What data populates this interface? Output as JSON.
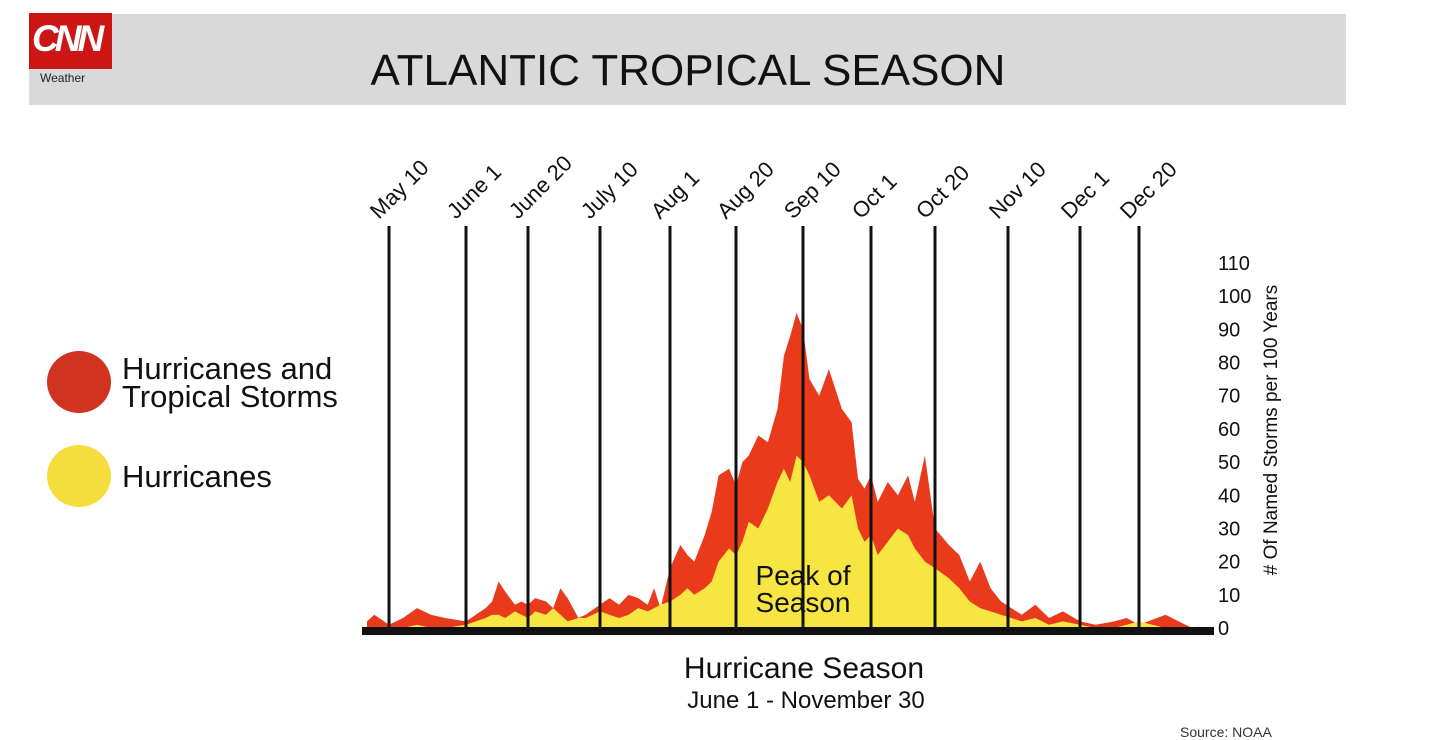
{
  "header": {
    "logo_text": "CNN",
    "logo_sub": "Weather",
    "title": "ATLANTIC TROPICAL SEASON"
  },
  "legend": [
    {
      "label_line1": "Hurricanes and",
      "label_line2": "Tropical Storms",
      "color": "#d03420"
    },
    {
      "label_line1": "Hurricanes",
      "label_line2": "",
      "color": "#f5dd3d"
    }
  ],
  "annotation": {
    "line1": "Peak of",
    "line2": "Season"
  },
  "footer": {
    "source": "Source: NOAA"
  },
  "colors": {
    "storms": "#e93a1c",
    "hurricanes": "#f7e542",
    "bar": "#111111"
  },
  "chart_data": {
    "type": "area",
    "title": "ATLANTIC TROPICAL SEASON",
    "xlabel": "Hurricane Season",
    "xlabel_sub": "June 1 - November 30",
    "ylabel": "# Of Named Storms per 100 Years",
    "ylim": [
      0,
      110
    ],
    "yticks": [
      0,
      10,
      20,
      30,
      40,
      50,
      60,
      70,
      80,
      90,
      100,
      110
    ],
    "date_ticks": [
      "May 10",
      "June 1",
      "June 20",
      "July 10",
      "Aug 1",
      "Aug 20",
      "Sep 10",
      "Oct 1",
      "Oct 20",
      "Nov 10",
      "Dec 1",
      "Dec 20"
    ],
    "legend": "left",
    "x": [
      "2024-05-01",
      "2024-05-04",
      "2024-05-10",
      "2024-05-14",
      "2024-05-18",
      "2024-05-22",
      "2024-05-26",
      "2024-06-01",
      "2024-06-04",
      "2024-06-07",
      "2024-06-09",
      "2024-06-11",
      "2024-06-13",
      "2024-06-16",
      "2024-06-18",
      "2024-06-20",
      "2024-06-22",
      "2024-06-25",
      "2024-06-27",
      "2024-06-29",
      "2024-07-01",
      "2024-07-04",
      "2024-07-06",
      "2024-07-10",
      "2024-07-13",
      "2024-07-16",
      "2024-07-19",
      "2024-07-22",
      "2024-07-25",
      "2024-07-27",
      "2024-07-29",
      "2024-08-01",
      "2024-08-04",
      "2024-08-06",
      "2024-08-08",
      "2024-08-11",
      "2024-08-13",
      "2024-08-15",
      "2024-08-18",
      "2024-08-20",
      "2024-08-22",
      "2024-08-24",
      "2024-08-27",
      "2024-08-30",
      "2024-09-02",
      "2024-09-04",
      "2024-09-06",
      "2024-09-08",
      "2024-09-10",
      "2024-09-12",
      "2024-09-15",
      "2024-09-18",
      "2024-09-22",
      "2024-09-25",
      "2024-09-27",
      "2024-09-29",
      "2024-10-01",
      "2024-10-03",
      "2024-10-06",
      "2024-10-09",
      "2024-10-12",
      "2024-10-14",
      "2024-10-17",
      "2024-10-20",
      "2024-10-24",
      "2024-10-27",
      "2024-10-30",
      "2024-11-02",
      "2024-11-05",
      "2024-11-08",
      "2024-11-11",
      "2024-11-14",
      "2024-11-18",
      "2024-11-22",
      "2024-11-26",
      "2024-12-01",
      "2024-12-06",
      "2024-12-12",
      "2024-12-16",
      "2024-12-20",
      "2024-12-24",
      "2024-12-28"
    ],
    "series": [
      {
        "name": "Hurricanes and Tropical Storms",
        "values": [
          2,
          4,
          1,
          3,
          6,
          4,
          3,
          2,
          4,
          6,
          8,
          14,
          11,
          7,
          8,
          7,
          9,
          8,
          6,
          12,
          9,
          3,
          4,
          7,
          9,
          7,
          10,
          9,
          7,
          12,
          6,
          18,
          25,
          22,
          20,
          28,
          35,
          46,
          48,
          43,
          50,
          52,
          58,
          56,
          66,
          82,
          88,
          95,
          90,
          75,
          70,
          78,
          66,
          62,
          45,
          42,
          46,
          38,
          44,
          40,
          46,
          38,
          52,
          30,
          25,
          22,
          14,
          20,
          12,
          8,
          6,
          4,
          7,
          3,
          5,
          2,
          1,
          2,
          3,
          1,
          4,
          0
        ]
      },
      {
        "name": "Hurricanes",
        "values": [
          0,
          0,
          0,
          0,
          1,
          0,
          0,
          1,
          2,
          3,
          4,
          4,
          3,
          5,
          4,
          3,
          5,
          4,
          6,
          4,
          2,
          3,
          3,
          5,
          4,
          3,
          4,
          6,
          5,
          6,
          7,
          8,
          10,
          12,
          10,
          12,
          14,
          20,
          24,
          22,
          26,
          32,
          30,
          36,
          44,
          48,
          44,
          52,
          50,
          46,
          38,
          40,
          36,
          40,
          30,
          26,
          28,
          22,
          26,
          30,
          28,
          24,
          20,
          18,
          15,
          12,
          8,
          6,
          5,
          4,
          3,
          2,
          3,
          1,
          2,
          1,
          0,
          0,
          1,
          2,
          0,
          0
        ]
      }
    ]
  }
}
